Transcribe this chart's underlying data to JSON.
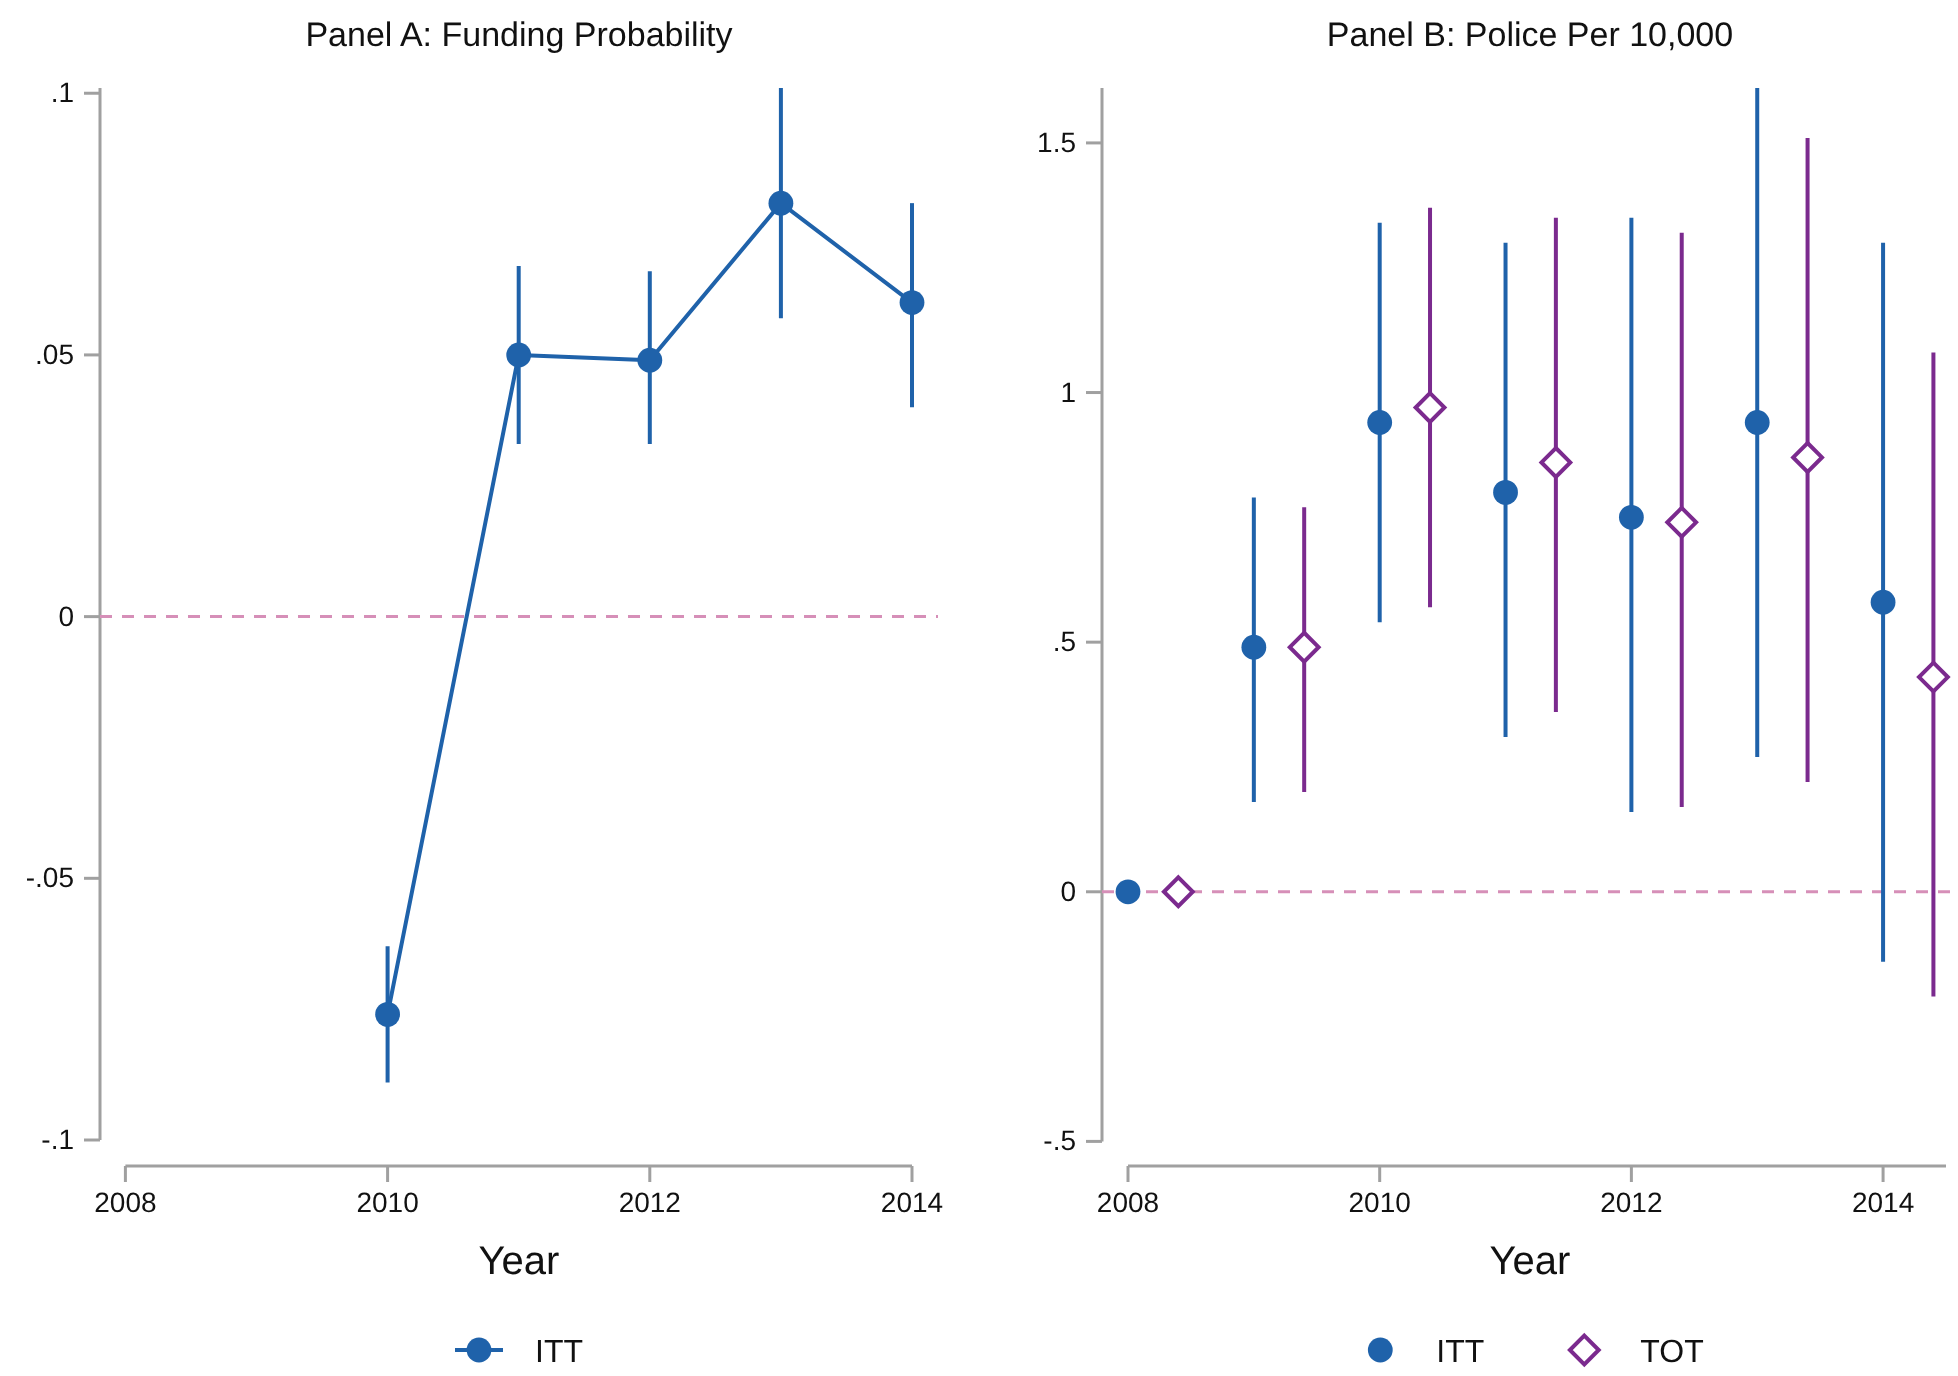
{
  "chart_data": [
    {
      "type": "line",
      "title": "Panel A: Funding Probability",
      "xlabel": "Year",
      "x": [
        2010,
        2011,
        2012,
        2013,
        2014
      ],
      "series": [
        {
          "name": "ITT",
          "color": "#1f62aa",
          "values": [
            -0.076,
            0.05,
            0.049,
            0.079,
            0.06
          ],
          "errors": [
            [
              -0.089,
              -0.063
            ],
            [
              0.033,
              0.067
            ],
            [
              0.033,
              0.066
            ],
            [
              0.057,
              0.101
            ],
            [
              0.04,
              0.079
            ]
          ]
        }
      ],
      "xlim": [
        2008,
        2014
      ],
      "xticks": [
        2008,
        2010,
        2012,
        2014
      ],
      "ylim": [
        -0.1,
        0.101
      ],
      "yticks": [
        {
          "value": -0.1,
          "label": "-.1"
        },
        {
          "value": -0.05,
          "label": "-.05"
        },
        0,
        {
          "value": 0.05,
          "label": ".05"
        },
        {
          "value": 0.1,
          "label": ".1"
        }
      ],
      "ref_lines": [
        {
          "axis": "y",
          "value": 0,
          "color": "#d68fb8",
          "line_style": "dashed"
        }
      ],
      "marker": "circle",
      "legend": "bottom"
    },
    {
      "type": "scatter",
      "title": "Panel B: Police Per 10,000",
      "xlabel": "Year",
      "series": [
        {
          "name": "ITT",
          "color": "#1f62aa",
          "marker": "circle",
          "x": [
            2008,
            2009,
            2010,
            2011,
            2012,
            2013,
            2014
          ],
          "values": [
            0,
            0.49,
            0.94,
            0.8,
            0.75,
            0.94,
            0.58
          ],
          "errors": [
            null,
            [
              0.18,
              0.79
            ],
            [
              0.54,
              1.34
            ],
            [
              0.31,
              1.3
            ],
            [
              0.16,
              1.35
            ],
            [
              0.27,
              1.61
            ],
            [
              -0.14,
              1.3
            ]
          ]
        },
        {
          "name": "TOT",
          "color": "#7b2a8e",
          "marker": "diamond",
          "x": [
            2008.4,
            2009.4,
            2010.4,
            2011.4,
            2012.4,
            2013.4,
            2014.4
          ],
          "values": [
            0,
            0.49,
            0.97,
            0.86,
            0.74,
            0.87,
            0.43
          ],
          "errors": [
            null,
            [
              0.2,
              0.77
            ],
            [
              0.57,
              1.37
            ],
            [
              0.36,
              1.35
            ],
            [
              0.17,
              1.32
            ],
            [
              0.22,
              1.51
            ],
            [
              -0.21,
              1.08
            ]
          ]
        }
      ],
      "xlim": [
        2008,
        2014.5
      ],
      "xticks": [
        2008,
        2010,
        2012,
        2014
      ],
      "ylim": [
        -0.5,
        1.61
      ],
      "yticks": [
        {
          "value": -0.5,
          "label": "-.5"
        },
        0,
        {
          "value": 0.5,
          "label": ".5"
        },
        1,
        1.5
      ],
      "ref_lines": [
        {
          "axis": "y",
          "value": 0,
          "color": "#d68fb8",
          "line_style": "dashed"
        }
      ],
      "legend": "bottom"
    }
  ]
}
